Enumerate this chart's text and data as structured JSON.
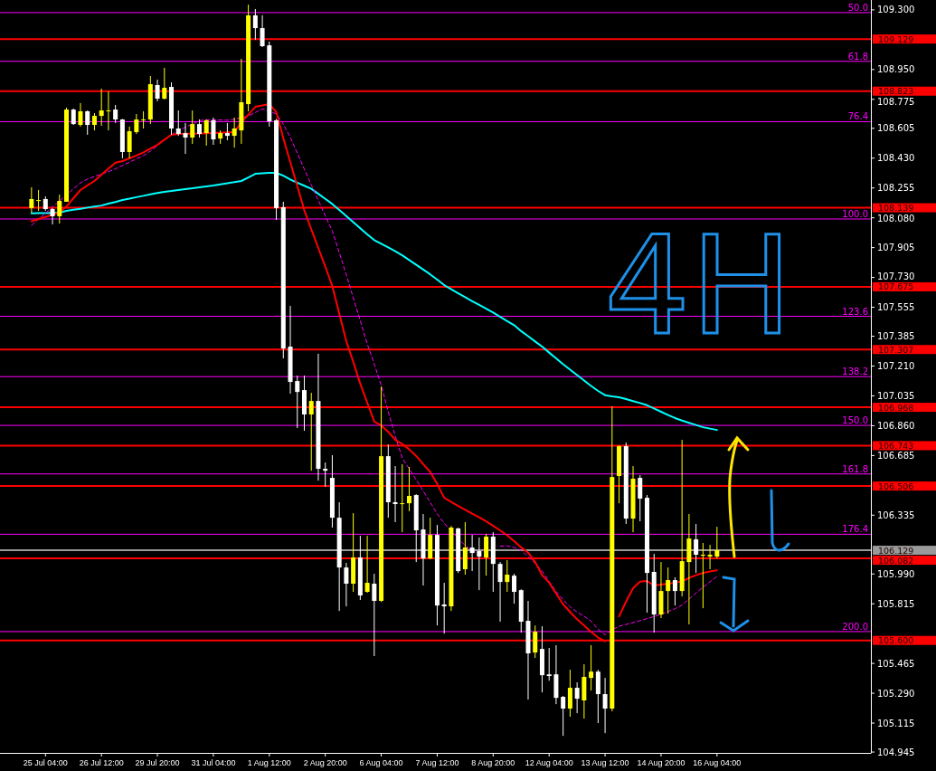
{
  "chart_data": {
    "type": "candlestick",
    "categories": [
      null,
      null,
      "25 Jul 04:00",
      null,
      null,
      null,
      null,
      null,
      null,
      null,
      "26 Jul 12:00",
      null,
      null,
      null,
      null,
      null,
      null,
      null,
      "29 Jul 20:00",
      null,
      null,
      null,
      null,
      null,
      null,
      null,
      "31 Jul 04:00",
      null,
      null,
      null,
      null,
      null,
      null,
      null,
      "1 Aug 12:00",
      null,
      null,
      null,
      null,
      null,
      null,
      null,
      "2 Aug 20:00",
      null,
      null,
      null,
      null,
      null,
      null,
      null,
      "6 Aug 04:00",
      null,
      null,
      null,
      null,
      null,
      null,
      null,
      "7 Aug 12:00",
      null,
      null,
      null,
      null,
      null,
      null,
      null,
      "8 Aug 20:00",
      null,
      null,
      null,
      null,
      null,
      null,
      null,
      "12 Aug 04:00",
      null,
      null,
      null,
      null,
      null,
      null,
      null,
      "13 Aug 12:00",
      null,
      null,
      null,
      null,
      null,
      null,
      null,
      "14 Aug 20:00",
      null,
      null,
      null,
      null,
      null,
      null,
      null,
      "16 Aug 04:00"
    ],
    "ohlc": [
      [
        108.137,
        108.259,
        108.11,
        108.19
      ],
      [
        108.179,
        108.243,
        108.121,
        108.184
      ],
      [
        108.19,
        108.206,
        108.121,
        108.131
      ],
      [
        108.131,
        108.137,
        108.041,
        108.089
      ],
      [
        108.089,
        108.216,
        108.046,
        108.179
      ],
      [
        108.174,
        108.726,
        108.174,
        108.715
      ],
      [
        108.715,
        108.721,
        108.625,
        108.63
      ],
      [
        108.625,
        108.753,
        108.615,
        108.705
      ],
      [
        108.705,
        108.71,
        108.567,
        108.625
      ],
      [
        108.625,
        108.694,
        108.593,
        108.678
      ],
      [
        108.678,
        108.838,
        108.62,
        108.71
      ],
      [
        108.708,
        108.822,
        108.593,
        108.71
      ],
      [
        108.715,
        108.742,
        108.636,
        108.657
      ],
      [
        108.657,
        108.66,
        108.429,
        108.466
      ],
      [
        108.466,
        108.615,
        108.429,
        108.588
      ],
      [
        108.583,
        108.689,
        108.572,
        108.657
      ],
      [
        108.654,
        108.705,
        108.604,
        108.657
      ],
      [
        108.657,
        108.912,
        108.63,
        108.864
      ],
      [
        108.859,
        108.891,
        108.763,
        108.779
      ],
      [
        108.779,
        108.96,
        108.774,
        108.843
      ],
      [
        108.848,
        108.875,
        108.567,
        108.604
      ],
      [
        108.604,
        108.71,
        108.561,
        108.572
      ],
      [
        108.577,
        108.636,
        108.455,
        108.551
      ],
      [
        108.551,
        108.71,
        108.514,
        108.63
      ],
      [
        108.63,
        108.657,
        108.551,
        108.572
      ],
      [
        108.577,
        108.657,
        108.503,
        108.652
      ],
      [
        108.652,
        108.668,
        108.508,
        108.54
      ],
      [
        108.545,
        108.593,
        108.514,
        108.577
      ],
      [
        108.577,
        108.636,
        108.535,
        108.561
      ],
      [
        108.561,
        108.668,
        108.492,
        108.604
      ],
      [
        108.593,
        109.013,
        108.514,
        108.758
      ],
      [
        108.747,
        109.331,
        108.705,
        109.268
      ],
      [
        109.268,
        109.305,
        109.124,
        109.193
      ],
      [
        109.193,
        109.268,
        109.082,
        109.087
      ],
      [
        109.092,
        109.114,
        108.615,
        108.646
      ],
      [
        108.652,
        108.66,
        108.068,
        108.137
      ],
      [
        108.142,
        108.174,
        107.255,
        107.313
      ],
      [
        107.324,
        107.563,
        107.048,
        107.117
      ],
      [
        107.122,
        107.154,
        106.846,
        107.058
      ],
      [
        107.069,
        107.154,
        106.83,
        106.926
      ],
      [
        106.926,
        107.053,
        106.596,
        107.005
      ],
      [
        107.005,
        107.282,
        106.538,
        106.607
      ],
      [
        106.607,
        106.644,
        106.501,
        106.596
      ],
      [
        106.554,
        106.687,
        106.262,
        106.32
      ],
      [
        106.32,
        106.411,
        105.773,
        106.028
      ],
      [
        106.028,
        106.055,
        105.8,
        105.933
      ],
      [
        105.933,
        106.347,
        105.885,
        106.087
      ],
      [
        106.087,
        106.214,
        105.837,
        105.864
      ],
      [
        105.885,
        106.214,
        105.88,
        105.938
      ],
      [
        105.933,
        105.991,
        105.508,
        105.832
      ],
      [
        105.832,
        107.09,
        105.826,
        106.681
      ],
      [
        106.681,
        106.75,
        106.32,
        106.411
      ],
      [
        106.411,
        106.623,
        106.294,
        106.4
      ],
      [
        106.4,
        106.634,
        106.235,
        106.405
      ],
      [
        106.405,
        106.618,
        106.358,
        106.448
      ],
      [
        106.453,
        106.458,
        106.06,
        106.246
      ],
      [
        106.251,
        106.342,
        105.922,
        106.081
      ],
      [
        106.081,
        106.32,
        106.076,
        106.219
      ],
      [
        106.219,
        106.278,
        105.688,
        105.805
      ],
      [
        105.811,
        105.938,
        105.64,
        105.8
      ],
      [
        105.8,
        106.272,
        105.773,
        106.262
      ],
      [
        106.257,
        106.262,
        105.996,
        106.007
      ],
      [
        106.018,
        106.294,
        105.986,
        106.145
      ],
      [
        106.145,
        106.219,
        106.007,
        106.113
      ],
      [
        106.124,
        106.204,
        105.895,
        106.092
      ],
      [
        106.087,
        106.225,
        105.98,
        106.209
      ],
      [
        106.209,
        106.235,
        105.885,
        106.049
      ],
      [
        106.049,
        106.06,
        105.71,
        105.943
      ],
      [
        105.943,
        106.071,
        105.885,
        105.986
      ],
      [
        105.98,
        105.991,
        105.816,
        105.885
      ],
      [
        105.895,
        105.9,
        105.646,
        105.71
      ],
      [
        105.715,
        105.832,
        105.253,
        105.524
      ],
      [
        105.529,
        105.688,
        105.497,
        105.651
      ],
      [
        105.55,
        105.683,
        105.295,
        105.396
      ],
      [
        105.401,
        105.556,
        105.364,
        105.391
      ],
      [
        105.401,
        105.572,
        105.226,
        105.263
      ],
      [
        105.269,
        105.274,
        105.04,
        105.2
      ],
      [
        105.2,
        105.428,
        105.152,
        105.322
      ],
      [
        105.322,
        105.354,
        105.173,
        105.258
      ],
      [
        105.248,
        105.46,
        105.141,
        105.386
      ],
      [
        105.38,
        105.572,
        105.306,
        105.417
      ],
      [
        105.417,
        105.428,
        105.115,
        105.285
      ],
      [
        105.285,
        105.38,
        105.056,
        105.2
      ],
      [
        105.2,
        106.974,
        105.184,
        106.559
      ],
      [
        106.565,
        106.745,
        106.405,
        106.74
      ],
      [
        106.74,
        106.761,
        106.283,
        106.315
      ],
      [
        106.315,
        106.623,
        106.235,
        106.549
      ],
      [
        106.554,
        106.57,
        106.299,
        106.432
      ],
      [
        106.437,
        106.453,
        105.763,
        105.996
      ],
      [
        106.002,
        106.108,
        105.646,
        105.752
      ],
      [
        105.752,
        106.06,
        105.731,
        105.89
      ],
      [
        105.89,
        106.028,
        105.757,
        105.954
      ],
      [
        105.954,
        105.97,
        105.805,
        105.89
      ],
      [
        105.89,
        106.777,
        105.858,
        106.065
      ],
      [
        106.06,
        106.342,
        105.694,
        106.198
      ],
      [
        106.193,
        106.283,
        105.996,
        106.103
      ],
      [
        106.097,
        106.172,
        105.789,
        106.103
      ],
      [
        106.092,
        106.161,
        106.018,
        106.103
      ],
      [
        106.092,
        106.267,
        106.081,
        106.129
      ]
    ],
    "colors": [
      "#ffff00",
      "#ffff00",
      "#ffffff",
      "#ffffff",
      "#ffff00",
      "#ffff00",
      "#ffffff",
      "#ffff00",
      "#ffffff",
      "#ffff00",
      "#ffff00",
      "#ffff00",
      "#ffffff",
      "#ffffff",
      "#ffff00",
      "#ffff00",
      "#ffff00",
      "#ffff00",
      "#ffffff",
      "#ffff00",
      "#ffffff",
      "#ffffff",
      "#ffffff",
      "#ffff00",
      "#ffffff",
      "#ffff00",
      "#ffffff",
      "#ffff00",
      "#ffffff",
      "#ffff00",
      "#ffff00",
      "#ffff00",
      "#ffffff",
      "#ffffff",
      "#ffffff",
      "#ffffff",
      "#ffffff",
      "#ffffff",
      "#ffffff",
      "#ffffff",
      "#ffff00",
      "#ffffff",
      "#ffffff",
      "#ffffff",
      "#ffffff",
      "#ffffff",
      "#ffff00",
      "#ffffff",
      "#ffff00",
      "#ffffff",
      "#ffff00",
      "#ffffff",
      "#ffffff",
      "#ffff00",
      "#ffff00",
      "#ffffff",
      "#ffffff",
      "#ffff00",
      "#ffffff",
      "#ffffff",
      "#ffff00",
      "#ffffff",
      "#ffff00",
      "#ffffff",
      "#ffffff",
      "#ffff00",
      "#ffffff",
      "#ffffff",
      "#ffff00",
      "#ffffff",
      "#ffffff",
      "#ffffff",
      "#ffff00",
      "#ffffff",
      "#ffffff",
      "#ffffff",
      "#ffffff",
      "#ffff00",
      "#ffffff",
      "#ffff00",
      "#ffff00",
      "#ffffff",
      "#ffffff",
      "#ffff00",
      "#ffff00",
      "#ffffff",
      "#ffff00",
      "#ffffff",
      "#ffffff",
      "#ffffff",
      "#ffff00",
      "#ffff00",
      "#ffffff",
      "#ffff00",
      "#ffff00",
      "#ffffff",
      "#ffff00",
      "#ffff00",
      "#ffff00"
    ],
    "series": [
      {
        "type": "line",
        "color": "#00ffff",
        "line_style": "solid",
        "values": [
          108.106,
          108.107,
          108.108,
          108.109,
          108.11,
          108.121,
          108.127,
          108.133,
          108.14,
          108.146,
          108.152,
          108.163,
          108.173,
          108.184,
          108.192,
          108.201,
          108.209,
          108.218,
          108.226,
          108.232,
          108.237,
          108.243,
          108.248,
          108.253,
          108.259,
          108.264,
          108.269,
          108.276,
          108.283,
          108.289,
          108.296,
          108.317,
          108.338,
          108.341,
          108.344,
          108.344,
          108.327,
          108.304,
          108.286,
          108.268,
          108.25,
          108.221,
          108.191,
          108.161,
          108.126,
          108.09,
          108.054,
          108.018,
          107.983,
          107.949,
          107.927,
          107.906,
          107.884,
          107.86,
          107.832,
          107.804,
          107.776,
          107.748,
          107.717,
          107.685,
          107.661,
          107.637,
          107.614,
          107.591,
          107.569,
          107.547,
          107.524,
          107.499,
          107.474,
          107.45,
          107.415,
          107.385,
          107.354,
          107.324,
          107.289,
          107.255,
          107.221,
          107.189,
          107.157,
          107.125,
          107.093,
          107.064,
          107.039,
          107.032,
          107.027,
          107.016,
          107.004,
          106.993,
          106.98,
          106.961,
          106.942,
          106.923,
          106.905,
          106.89,
          106.877,
          106.864,
          106.851,
          106.843,
          106.835
        ]
      },
      {
        "type": "line",
        "color": "#ff00ff",
        "line_style": "dashed",
        "values": [
          108.036,
          108.072,
          108.107,
          108.143,
          108.178,
          108.214,
          108.25,
          108.285,
          108.307,
          108.322,
          108.337,
          108.351,
          108.367,
          108.387,
          108.406,
          108.426,
          108.445,
          108.471,
          108.503,
          null,
          108.567,
          108.591,
          108.611,
          108.63,
          108.65,
          108.656,
          108.655,
          108.654,
          108.653,
          108.657,
          108.668,
          108.678,
          108.698,
          108.719,
          108.706,
          108.689,
          108.63,
          108.552,
          108.46,
          108.366,
          108.273,
          108.183,
          108.092,
          108.002,
          107.876,
          107.746,
          107.611,
          107.476,
          107.34,
          107.222,
          107.097,
          106.943,
          106.8,
          106.671,
          106.607,
          106.543,
          106.477,
          106.41,
          106.343,
          106.288,
          106.241,
          106.199,
          106.157,
          106.123,
          106.112,
          106.137,
          null,
          106.153,
          106.155,
          106.146,
          106.129,
          106.09,
          106.053,
          106.007,
          105.946,
          105.887,
          105.839,
          105.797,
          105.766,
          105.741,
          105.713,
          105.666,
          105.633,
          105.663,
          105.683,
          105.694,
          105.704,
          105.716,
          105.728,
          105.74,
          105.753,
          105.77,
          105.786,
          105.807,
          105.843,
          105.879,
          105.912,
          105.944,
          105.976
        ]
      },
      {
        "type": "line",
        "color": "#ff0000",
        "line_style": "solid",
        "values": [
          108.06,
          108.073,
          108.085,
          108.098,
          108.11,
          108.147,
          108.195,
          108.243,
          108.27,
          108.296,
          108.333,
          108.369,
          108.403,
          108.413,
          108.429,
          108.445,
          108.464,
          108.486,
          108.508,
          108.538,
          108.567,
          108.572,
          108.573,
          108.574,
          108.575,
          108.576,
          108.577,
          108.579,
          108.581,
          108.583,
          108.641,
          108.686,
          108.731,
          108.739,
          108.747,
          108.7,
          108.547,
          108.406,
          108.265,
          108.124,
          108.012,
          107.903,
          107.794,
          107.68,
          107.518,
          107.356,
          107.235,
          107.106,
          106.995,
          106.884,
          106.861,
          106.824,
          106.777,
          106.753,
          106.721,
          106.682,
          106.635,
          106.589,
          106.518,
          106.437,
          106.413,
          106.389,
          106.366,
          106.344,
          106.323,
          106.299,
          106.272,
          106.245,
          106.217,
          106.183,
          106.146,
          106.115,
          106.06,
          105.983,
          105.939,
          105.875,
          105.812,
          105.767,
          105.724,
          105.687,
          105.65,
          105.617,
          105.595,
          null,
          105.741,
          105.828,
          105.906,
          105.945,
          105.949,
          105.922,
          105.928,
          105.933,
          105.939,
          105.946,
          105.967,
          105.983,
          105.996,
          106.005,
          106.012
        ]
      }
    ],
    "ylim": [
      104.94,
      109.358
    ],
    "yticks": [
      {
        "value": 109.3,
        "label": "109.300"
      },
      {
        "value": 108.95,
        "label": "108.950"
      },
      {
        "value": 108.775,
        "label": "108.775"
      },
      {
        "value": 108.605,
        "label": "108.605"
      },
      {
        "value": 108.43,
        "label": "108.430"
      },
      {
        "value": 108.255,
        "label": "108.255"
      },
      {
        "value": 108.08,
        "label": "108.080"
      },
      {
        "value": 107.905,
        "label": "107.905"
      },
      {
        "value": 107.73,
        "label": "107.730"
      },
      {
        "value": 107.555,
        "label": "107.555"
      },
      {
        "value": 107.385,
        "label": "107.385"
      },
      {
        "value": 107.21,
        "label": "107.210"
      },
      {
        "value": 107.035,
        "label": "107.035"
      },
      {
        "value": 106.86,
        "label": "106.860"
      },
      {
        "value": 106.685,
        "label": "106.685"
      },
      {
        "value": 106.335,
        "label": "106.335"
      },
      {
        "value": 105.99,
        "label": "105.990"
      },
      {
        "value": 105.815,
        "label": "105.815"
      },
      {
        "value": 105.465,
        "label": "105.465"
      },
      {
        "value": 105.29,
        "label": "105.290"
      },
      {
        "value": 105.115,
        "label": "105.115"
      },
      {
        "value": 104.945,
        "label": "104.945"
      }
    ],
    "ref_lines": [
      {
        "axis": "y",
        "value": 109.284,
        "color": "#ff00ff"
      },
      {
        "axis": "y",
        "value": 108.998,
        "color": "#ff00ff"
      },
      {
        "axis": "y",
        "value": 108.644,
        "color": "#ff00ff"
      },
      {
        "axis": "y",
        "value": 108.073,
        "color": "#ff00ff"
      },
      {
        "axis": "y",
        "value": 107.502,
        "color": "#ff00ff"
      },
      {
        "axis": "y",
        "value": 107.148,
        "color": "#ff00ff"
      },
      {
        "axis": "y",
        "value": 106.862,
        "color": "#ff00ff"
      },
      {
        "axis": "y",
        "value": 106.577,
        "color": "#ff00ff"
      },
      {
        "axis": "y",
        "value": 106.223,
        "color": "#ff00ff"
      },
      {
        "axis": "y",
        "value": 105.652,
        "color": "#ff00ff"
      },
      {
        "axis": "y",
        "value": 106.129,
        "label": "106.129",
        "color": "#9a9a9a"
      },
      {
        "axis": "y",
        "value": 109.129,
        "label": "109.129",
        "color": "#ff0000"
      },
      {
        "axis": "y",
        "value": 108.823,
        "label": "108.823",
        "color": "#ff0000"
      },
      {
        "axis": "y",
        "value": 108.139,
        "label": "108.139",
        "color": "#ff0000"
      },
      {
        "axis": "y",
        "value": 107.675,
        "label": "107.675",
        "color": "#ff0000"
      },
      {
        "axis": "y",
        "value": 107.307,
        "label": "107.307",
        "color": "#ff0000"
      },
      {
        "axis": "y",
        "value": 106.968,
        "label": "106.968",
        "color": "#ff0000"
      },
      {
        "axis": "y",
        "value": 106.743,
        "label": "106.743",
        "color": "#ff0000"
      },
      {
        "axis": "y",
        "value": 106.506,
        "label": "106.506",
        "color": "#ff0000"
      },
      {
        "axis": "y",
        "value": 106.082,
        "label": "106.082",
        "color": "#ff0000"
      },
      {
        "axis": "y",
        "value": 105.6,
        "label": "105.600",
        "color": "#ff0000"
      }
    ],
    "annotations": [
      "4H",
      {
        "text": "50.0",
        "y": 109.284
      },
      {
        "text": "61.8",
        "y": 108.998
      },
      {
        "text": "76.4",
        "y": 108.644
      },
      {
        "text": "100.0",
        "y": 108.073
      },
      {
        "text": "123.6",
        "y": 107.502
      },
      {
        "text": "138.2",
        "y": 107.148
      },
      {
        "text": "150.0",
        "y": 106.862
      },
      {
        "text": "161.8",
        "y": 106.577
      },
      {
        "text": "176.4",
        "y": 106.223
      },
      {
        "text": "200.0",
        "y": 105.652
      }
    ]
  }
}
